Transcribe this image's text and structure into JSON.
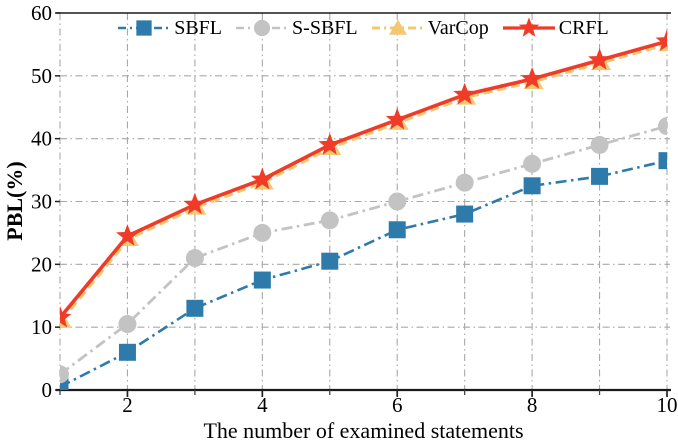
{
  "figure": {
    "type": "line-chart-figure",
    "background": "#ffffff"
  },
  "chart_data": {
    "type": "line",
    "title": "",
    "xlabel": "The number of examined statements",
    "ylabel": "PBL(%)",
    "xlim": [
      1,
      10
    ],
    "ylim": [
      0,
      60
    ],
    "x": [
      1,
      2,
      3,
      4,
      5,
      6,
      7,
      8,
      9,
      10
    ],
    "xticks_labeled": [
      2,
      4,
      6,
      8,
      10
    ],
    "xticks_minor": [
      1,
      3,
      5,
      7,
      9
    ],
    "yticks": [
      0,
      10,
      20,
      30,
      40,
      50,
      60
    ],
    "grid": true,
    "grid_style": "dash-dot",
    "grid_color": "#a8a8a8",
    "axis_color": "#1a1a1a",
    "legend_position": "top-inside",
    "series": [
      {
        "name": "SBFL",
        "color": "#2e7bab",
        "marker": "square",
        "linestyle": "dashdot",
        "line_width": 2.6,
        "values": [
          0.5,
          6,
          13,
          17.5,
          20.5,
          25.5,
          28,
          32.5,
          34,
          36.5
        ]
      },
      {
        "name": "S-SBFL",
        "color": "#c3c3c3",
        "marker": "circle",
        "linestyle": "dashdot",
        "line_width": 2.8,
        "values": [
          2.5,
          10.5,
          21,
          25,
          27,
          30,
          33,
          36,
          39,
          42
        ]
      },
      {
        "name": "VarCop",
        "color": "#f3c873",
        "marker": "triangle",
        "linestyle": "dashed",
        "line_width": 3.4,
        "values": [
          11.5,
          24.5,
          29.5,
          33.5,
          39,
          43,
          47,
          49.5,
          52.5,
          55.5
        ],
        "note": "overlaps CRFL, drawn behind it"
      },
      {
        "name": "CRFL",
        "color": "#ef3b28",
        "marker": "star",
        "linestyle": "solid",
        "line_width": 3.6,
        "values": [
          11.5,
          24.5,
          29.5,
          33.5,
          39,
          43,
          47,
          49.5,
          52.5,
          55.5
        ]
      }
    ]
  }
}
